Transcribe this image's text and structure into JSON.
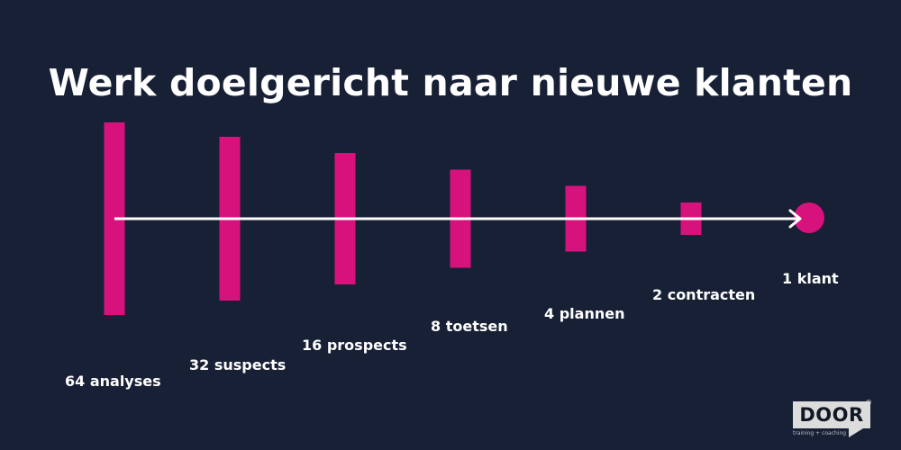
{
  "title": "Werk doelgericht naar nieuwe klanten",
  "colors": {
    "background": "#182036",
    "bar": "#d8127d",
    "arrow": "#ffffff",
    "text": "#ffffff"
  },
  "steps": [
    {
      "count": 64,
      "label": "64 analyses"
    },
    {
      "count": 32,
      "label": "32 suspects"
    },
    {
      "count": 16,
      "label": "16 prospects"
    },
    {
      "count": 8,
      "label": "8 toetsen"
    },
    {
      "count": 4,
      "label": "4 plannen"
    },
    {
      "count": 2,
      "label": "2 contracten"
    },
    {
      "count": 1,
      "label": "1 klant"
    }
  ],
  "logo": {
    "name": "DOOR",
    "registered": "®",
    "tagline": "training + coaching"
  }
}
